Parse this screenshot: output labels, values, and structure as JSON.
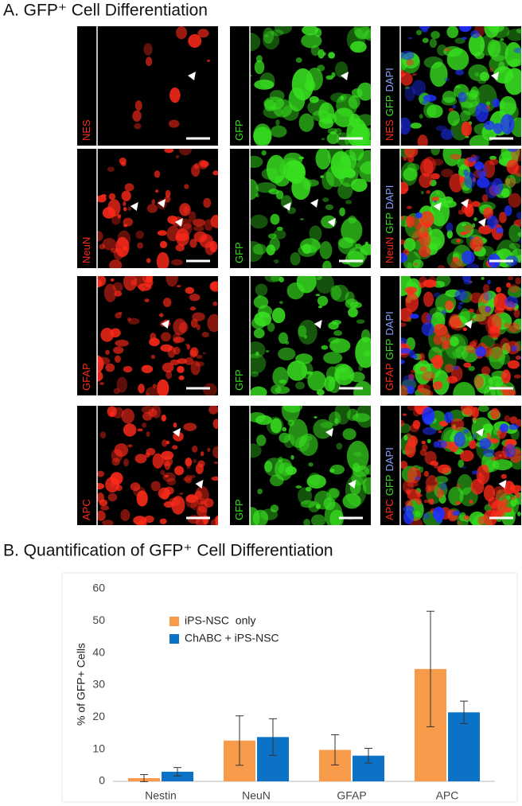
{
  "panel_a": {
    "title": "A. GFP⁺ Cell Differentiation",
    "rows": [
      {
        "marker": "NES",
        "reporter": "GFP",
        "merge": [
          "NES",
          "GFP",
          "DAPI"
        ]
      },
      {
        "marker": "NeuN",
        "reporter": "GFP",
        "merge": [
          "NeuN",
          "GFP",
          "DAPI"
        ]
      },
      {
        "marker": "GFAP",
        "reporter": "GFP",
        "merge": [
          "GFAP",
          "GFP",
          "DAPI"
        ]
      },
      {
        "marker": "APC",
        "reporter": "GFP",
        "merge": [
          "APC",
          "GFP",
          "DAPI"
        ]
      }
    ]
  },
  "chart_data": {
    "type": "bar",
    "title": "B. Quantification of GFP⁺ Cell Differentiation",
    "y_label": "% of GFP+ Cells",
    "categories": [
      "Nestin",
      "NeuN",
      "GFAP",
      "APC"
    ],
    "series": [
      {
        "name": "iPS-NSC  only",
        "color": "#f79a4a",
        "values": [
          1,
          12.7,
          9.8,
          35
        ],
        "errors": [
          1.1,
          7.7,
          4.7,
          18
        ]
      },
      {
        "name": "ChABC + iPS-NSC",
        "color": "#0b72c5",
        "values": [
          3,
          13.8,
          8,
          21.5
        ],
        "errors": [
          1.3,
          5.7,
          2.3,
          3.5
        ]
      }
    ],
    "ylim": [
      0,
      60
    ],
    "yticks": [
      0,
      10,
      20,
      30,
      40,
      50,
      60
    ]
  }
}
